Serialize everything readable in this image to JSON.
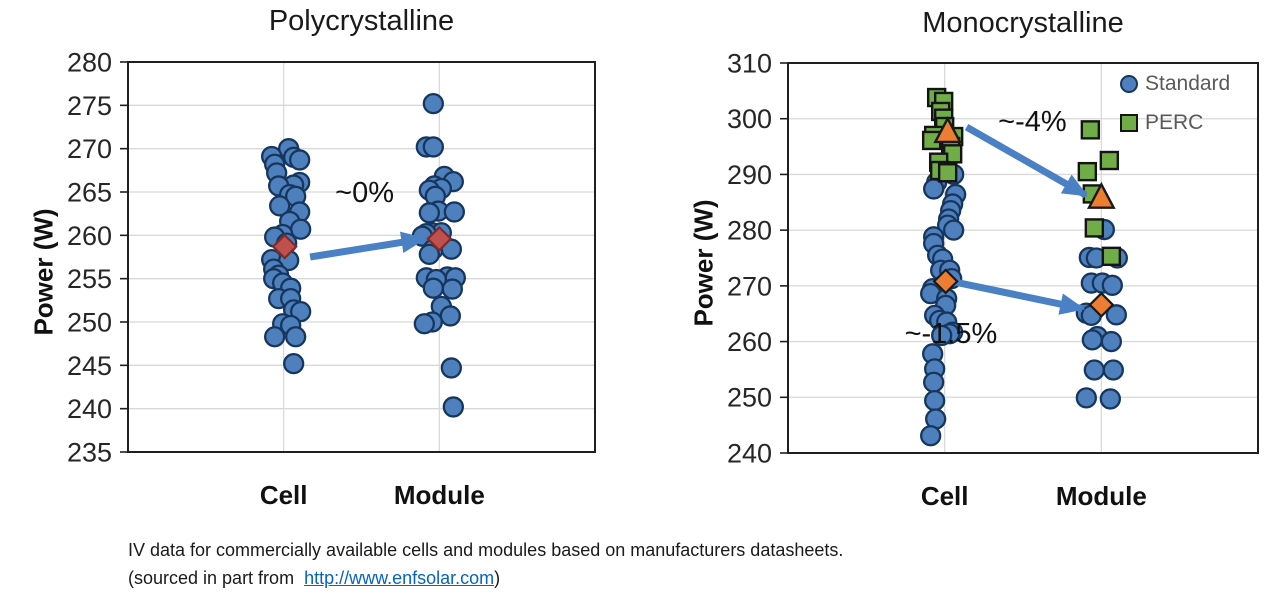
{
  "figure": {
    "caption_line1": "IV data for commercially available cells and modules based on manufacturers datasheets.",
    "caption_line2_prefix": "(sourced in part from  ",
    "caption_link": "http://www.enfsolar.com",
    "caption_line2_suffix": ")"
  },
  "colors": {
    "standard_blue": "#4d80bd",
    "standard_blue_border": "#17365d",
    "perc_green": "#70ad47",
    "perc_green_border": "#141414",
    "mean_orange": "#ed7d31",
    "mean_orange_border": "#1a1a1a",
    "mean_red": "#c0504d",
    "mean_red_border": "#7f2b28",
    "arrow_blue": "#4a80c4",
    "gridline": "#d9d9d9",
    "axis_border": "#1f1f1f",
    "legend_text": "#595959",
    "link_blue": "#0563c1"
  },
  "chart_data": [
    {
      "type": "scatter",
      "title": "Polycrystalline",
      "ylabel": "Power (W)",
      "xlabel": "",
      "ylim": [
        235,
        280
      ],
      "ytick_step": 5,
      "grid": true,
      "categories": [
        "Cell",
        "Module"
      ],
      "point_format": "[x_jitter_px, watts]",
      "series": [
        {
          "name": "Cell",
          "cat": 1,
          "marker": "circle",
          "fill": "#4d80bd",
          "stroke": "#17365d",
          "points": [
            [
              5,
              270
            ],
            [
              -12,
              269.1
            ],
            [
              10,
              269
            ],
            [
              16,
              268.7
            ],
            [
              -9,
              268.2
            ],
            [
              -7,
              267.2
            ],
            [
              16,
              266.1
            ],
            [
              10,
              265.8
            ],
            [
              -5,
              265.7
            ],
            [
              6,
              264.7
            ],
            [
              12,
              264.5
            ],
            [
              -4,
              263.4
            ],
            [
              16,
              262.7
            ],
            [
              6,
              261.6
            ],
            [
              17,
              260.7
            ],
            [
              -1,
              260.1
            ],
            [
              -9,
              259.8
            ],
            [
              3,
              259.1
            ],
            [
              -12,
              257.2
            ],
            [
              5,
              257.1
            ],
            [
              -10,
              256.1
            ],
            [
              -5,
              255.4
            ],
            [
              -10,
              255
            ],
            [
              -1,
              254.5
            ],
            [
              7,
              253.9
            ],
            [
              -5,
              252.7
            ],
            [
              7,
              252.7
            ],
            [
              10,
              251.4
            ],
            [
              17,
              251.2
            ],
            [
              -1,
              249.8
            ],
            [
              7,
              249.6
            ],
            [
              -9,
              248.3
            ],
            [
              12,
              248.3
            ],
            [
              10,
              245.2
            ]
          ]
        },
        {
          "name": "Module",
          "cat": 2,
          "marker": "circle",
          "fill": "#4d80bd",
          "stroke": "#17365d",
          "points": [
            [
              -6,
              275.2
            ],
            [
              -13,
              270.2
            ],
            [
              -6,
              270.2
            ],
            [
              5,
              266.8
            ],
            [
              14,
              266.2
            ],
            [
              -5,
              265.7
            ],
            [
              2,
              265.4
            ],
            [
              -10,
              265.2
            ],
            [
              -4,
              264.5
            ],
            [
              -1,
              262.8
            ],
            [
              15,
              262.7
            ],
            [
              -10,
              262.6
            ],
            [
              -7,
              260.3
            ],
            [
              2,
              260.3
            ],
            [
              -13,
              260.2
            ],
            [
              -17,
              259.9
            ],
            [
              -6,
              258.4
            ],
            [
              12,
              258.4
            ],
            [
              -10,
              257.8
            ],
            [
              8,
              255.2
            ],
            [
              -13,
              255.1
            ],
            [
              16,
              255.1
            ],
            [
              -3,
              254.9
            ],
            [
              -6,
              253.9
            ],
            [
              13,
              253.8
            ],
            [
              2,
              251.8
            ],
            [
              11,
              250.7
            ],
            [
              -7,
              250
            ],
            [
              -15,
              249.8
            ],
            [
              12,
              244.7
            ],
            [
              14,
              240.2
            ]
          ]
        },
        {
          "name": "Cell mean",
          "cat": 1,
          "marker": "diamond",
          "mean": true,
          "fill": "#c0504d",
          "stroke": "#7f2b28",
          "points": [
            [
              1,
              258.7
            ]
          ]
        },
        {
          "name": "Module mean",
          "cat": 2,
          "marker": "diamond",
          "mean": true,
          "fill": "#c0504d",
          "stroke": "#7f2b28",
          "points": [
            [
              0,
              259.6
            ]
          ]
        }
      ],
      "arrows": [
        {
          "x1": 1.17,
          "y1": 257.5,
          "x2": 1.9,
          "y2": 259.6
        }
      ],
      "annotations": [
        {
          "text": "~0%",
          "x": 1.52,
          "y": 265.0
        }
      ]
    },
    {
      "type": "scatter",
      "title": "Monocrystalline",
      "ylabel": "Power (W)",
      "xlabel": "",
      "ylim": [
        240,
        310
      ],
      "ytick_step": 10,
      "grid": true,
      "categories": [
        "Cell",
        "Module"
      ],
      "point_format": "[x_jitter_px, watts]",
      "legend": {
        "position": "top-right",
        "entries": [
          {
            "label": "Standard",
            "marker": "circle"
          },
          {
            "label": "PERC",
            "marker": "square"
          }
        ]
      },
      "series": [
        {
          "name": "Standard Cell",
          "cat": 1,
          "marker": "circle",
          "fill": "#4d80bd",
          "stroke": "#17365d",
          "points": [
            [
              9,
              290
            ],
            [
              -8,
              288.6
            ],
            [
              -11,
              287.4
            ],
            [
              11,
              286.4
            ],
            [
              8,
              284.7
            ],
            [
              6,
              283.5
            ],
            [
              4,
              282
            ],
            [
              3,
              280.9
            ],
            [
              9,
              280
            ],
            [
              -11,
              278.8
            ],
            [
              -11,
              277.6
            ],
            [
              -7,
              275.5
            ],
            [
              -2,
              274.8
            ],
            [
              -4,
              272.8
            ],
            [
              5,
              272.8
            ],
            [
              7,
              271.3
            ],
            [
              -12,
              269.5
            ],
            [
              -14,
              268.6
            ],
            [
              2,
              267.7
            ],
            [
              1,
              266.5
            ],
            [
              -10,
              264.7
            ],
            [
              -5,
              263.8
            ],
            [
              2,
              263.5
            ],
            [
              8,
              261.7
            ],
            [
              5,
              261.4
            ],
            [
              -3,
              261.1
            ],
            [
              -12,
              257.8
            ],
            [
              -10,
              255.1
            ],
            [
              -11,
              252.7
            ],
            [
              -10,
              249.4
            ],
            [
              -9,
              246.1
            ],
            [
              -14,
              243.1
            ]
          ]
        },
        {
          "name": "Standard Module",
          "cat": 2,
          "marker": "circle",
          "fill": "#4d80bd",
          "stroke": "#17365d",
          "points": [
            [
              3,
              280.1
            ],
            [
              -12,
              275.1
            ],
            [
              -5,
              275
            ],
            [
              16,
              275
            ],
            [
              -10,
              270.5
            ],
            [
              1,
              270.5
            ],
            [
              11,
              270.1
            ],
            [
              -15,
              265.1
            ],
            [
              15,
              264.8
            ],
            [
              -10,
              264.7
            ],
            [
              -4,
              260.9
            ],
            [
              -9,
              260.3
            ],
            [
              10,
              260
            ],
            [
              -7,
              254.9
            ],
            [
              12,
              254.9
            ],
            [
              -15,
              249.9
            ],
            [
              9,
              249.7
            ]
          ]
        },
        {
          "name": "PERC Cell",
          "cat": 1,
          "marker": "square",
          "fill": "#70ad47",
          "stroke": "#141414",
          "points": [
            [
              -8,
              303.8
            ],
            [
              -1,
              303.1
            ],
            [
              -4,
              301.3
            ],
            [
              -1,
              300.1
            ],
            [
              0,
              298.6
            ],
            [
              -11,
              297
            ],
            [
              9,
              296.8
            ],
            [
              -13,
              296.1
            ],
            [
              6,
              295
            ],
            [
              8,
              293.7
            ],
            [
              -6,
              292.2
            ],
            [
              -5,
              290.7
            ],
            [
              3,
              290.3
            ]
          ]
        },
        {
          "name": "PERC Module",
          "cat": 2,
          "marker": "square",
          "fill": "#70ad47",
          "stroke": "#141414",
          "points": [
            [
              -11,
              298
            ],
            [
              8,
              292.5
            ],
            [
              -14,
              290.5
            ],
            [
              -9,
              286.5
            ],
            [
              -7,
              280.4
            ],
            [
              10,
              275.3
            ]
          ]
        },
        {
          "name": "Standard Cell mean",
          "cat": 1,
          "marker": "diamond",
          "mean": true,
          "fill": "#ed7d31",
          "stroke": "#1a1a1a",
          "points": [
            [
              1,
              270.8
            ]
          ]
        },
        {
          "name": "Standard Module mean",
          "cat": 2,
          "marker": "diamond",
          "mean": true,
          "fill": "#ed7d31",
          "stroke": "#1a1a1a",
          "points": [
            [
              0,
              266.6
            ]
          ]
        },
        {
          "name": "PERC Cell mean",
          "cat": 1,
          "marker": "triangle",
          "mean": true,
          "fill": "#ed7d31",
          "stroke": "#1a1a1a",
          "points": [
            [
              3,
              297.7
            ]
          ]
        },
        {
          "name": "PERC Module mean",
          "cat": 2,
          "marker": "triangle",
          "mean": true,
          "fill": "#ed7d31",
          "stroke": "#1a1a1a",
          "points": [
            [
              0,
              285.9
            ]
          ]
        }
      ],
      "arrows": [
        {
          "x1": 1.14,
          "y1": 298.5,
          "x2": 1.9,
          "y2": 286.3
        },
        {
          "x1": 1.08,
          "y1": 270.6,
          "x2": 1.88,
          "y2": 265.9
        }
      ],
      "annotations": [
        {
          "text": "~-4%",
          "x": 1.56,
          "y": 299.6
        },
        {
          "text": "~-1.5%",
          "x": 1.04,
          "y": 261.6
        }
      ]
    }
  ]
}
